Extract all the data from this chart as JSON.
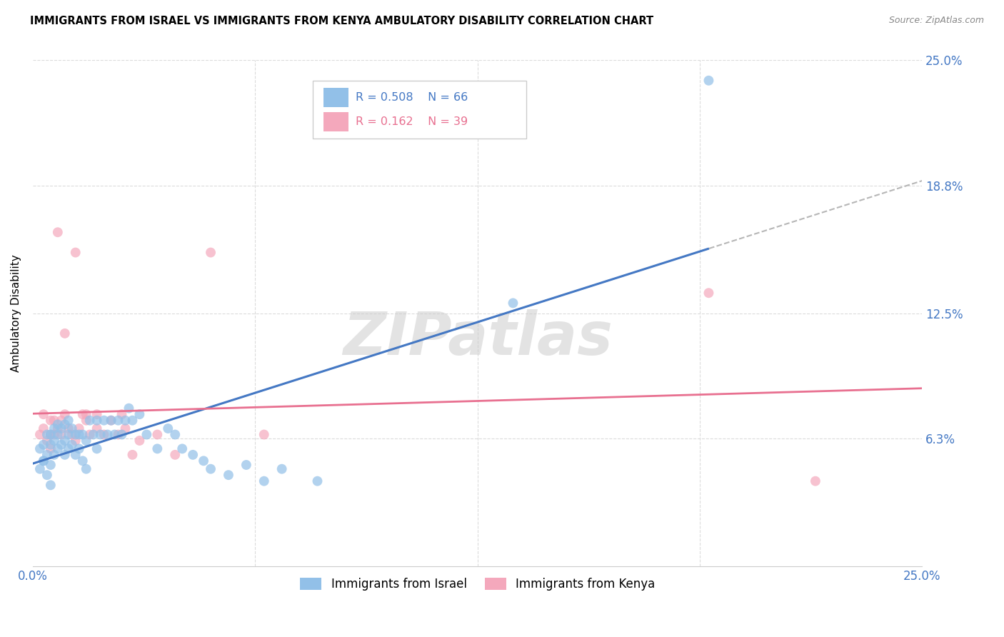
{
  "title": "IMMIGRANTS FROM ISRAEL VS IMMIGRANTS FROM KENYA AMBULATORY DISABILITY CORRELATION CHART",
  "source": "Source: ZipAtlas.com",
  "ylabel": "Ambulatory Disability",
  "xlim": [
    0.0,
    0.25
  ],
  "ylim": [
    0.0,
    0.25
  ],
  "ytick_labels": [
    "6.3%",
    "12.5%",
    "18.8%",
    "25.0%"
  ],
  "ytick_values": [
    0.063,
    0.125,
    0.188,
    0.25
  ],
  "grid_color": "#d8d8d8",
  "background_color": "#ffffff",
  "watermark": "ZIPatlas",
  "israel_color": "#92C0E8",
  "kenya_color": "#F4A8BC",
  "israel_R": 0.508,
  "israel_N": 66,
  "kenya_R": 0.162,
  "kenya_N": 39,
  "israel_line_color": "#4478C4",
  "kenya_line_color": "#E87090",
  "dashed_line_color": "#aaaaaa",
  "israel_x": [
    0.002,
    0.003,
    0.003,
    0.004,
    0.004,
    0.005,
    0.005,
    0.005,
    0.006,
    0.006,
    0.006,
    0.007,
    0.007,
    0.007,
    0.008,
    0.008,
    0.009,
    0.009,
    0.009,
    0.01,
    0.01,
    0.01,
    0.011,
    0.011,
    0.012,
    0.012,
    0.013,
    0.013,
    0.014,
    0.014,
    0.015,
    0.015,
    0.016,
    0.017,
    0.018,
    0.018,
    0.019,
    0.02,
    0.021,
    0.022,
    0.023,
    0.024,
    0.025,
    0.026,
    0.027,
    0.028,
    0.03,
    0.032,
    0.035,
    0.038,
    0.04,
    0.042,
    0.045,
    0.048,
    0.05,
    0.055,
    0.06,
    0.065,
    0.07,
    0.08,
    0.002,
    0.003,
    0.004,
    0.005,
    0.135,
    0.19
  ],
  "israel_y": [
    0.058,
    0.052,
    0.06,
    0.055,
    0.065,
    0.05,
    0.06,
    0.065,
    0.055,
    0.062,
    0.068,
    0.058,
    0.065,
    0.07,
    0.06,
    0.068,
    0.055,
    0.062,
    0.07,
    0.058,
    0.065,
    0.072,
    0.06,
    0.068,
    0.055,
    0.065,
    0.058,
    0.065,
    0.052,
    0.065,
    0.048,
    0.062,
    0.072,
    0.065,
    0.058,
    0.072,
    0.065,
    0.072,
    0.065,
    0.072,
    0.065,
    0.072,
    0.065,
    0.072,
    0.078,
    0.072,
    0.075,
    0.065,
    0.058,
    0.068,
    0.065,
    0.058,
    0.055,
    0.052,
    0.048,
    0.045,
    0.05,
    0.042,
    0.048,
    0.042,
    0.048,
    0.052,
    0.045,
    0.04,
    0.13,
    0.24
  ],
  "kenya_x": [
    0.002,
    0.003,
    0.004,
    0.005,
    0.005,
    0.006,
    0.006,
    0.007,
    0.008,
    0.008,
    0.009,
    0.01,
    0.011,
    0.012,
    0.013,
    0.014,
    0.015,
    0.016,
    0.018,
    0.02,
    0.022,
    0.024,
    0.026,
    0.028,
    0.03,
    0.035,
    0.04,
    0.05,
    0.065,
    0.003,
    0.005,
    0.007,
    0.009,
    0.012,
    0.015,
    0.018,
    0.025,
    0.22,
    0.19
  ],
  "kenya_y": [
    0.065,
    0.068,
    0.062,
    0.065,
    0.072,
    0.065,
    0.072,
    0.068,
    0.065,
    0.072,
    0.075,
    0.068,
    0.065,
    0.062,
    0.068,
    0.075,
    0.072,
    0.065,
    0.075,
    0.065,
    0.072,
    0.065,
    0.068,
    0.055,
    0.062,
    0.065,
    0.055,
    0.155,
    0.065,
    0.075,
    0.058,
    0.165,
    0.115,
    0.155,
    0.075,
    0.068,
    0.075,
    0.042,
    0.135
  ]
}
